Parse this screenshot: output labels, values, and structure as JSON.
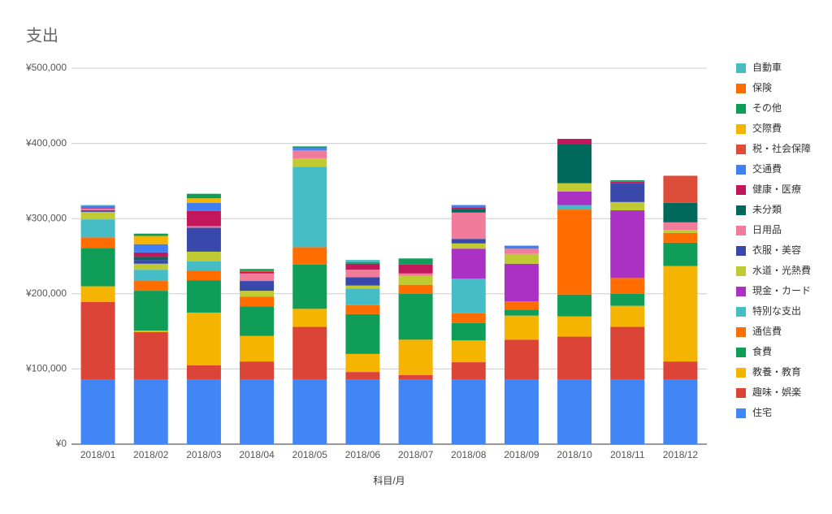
{
  "chart_data": {
    "type": "bar",
    "stacked": true,
    "title": "支出",
    "x_label": "科目/月",
    "categories": [
      "2018/01",
      "2018/02",
      "2018/03",
      "2018/04",
      "2018/05",
      "2018/06",
      "2018/07",
      "2018/08",
      "2018/09",
      "2018/10",
      "2018/11",
      "2018/12"
    ],
    "ylim": [
      0,
      500000
    ],
    "yticks": [
      {
        "value": 0,
        "label": "¥0"
      },
      {
        "value": 100000,
        "label": "¥100,000"
      },
      {
        "value": 200000,
        "label": "¥200,000"
      },
      {
        "value": 300000,
        "label": "¥300,000"
      },
      {
        "value": 400000,
        "label": "¥400,000"
      },
      {
        "value": 500000,
        "label": "¥500,000"
      }
    ],
    "grid": true,
    "legend": "right",
    "series": [
      {
        "name": "住宅",
        "color": "#4285f4",
        "values": [
          86000,
          86000,
          86000,
          86000,
          86000,
          86000,
          86000,
          86000,
          86000,
          86000,
          86000,
          86000
        ]
      },
      {
        "name": "趣味・娯楽",
        "color": "#db4437",
        "values": [
          103000,
          63000,
          19000,
          24000,
          70000,
          10000,
          6000,
          23000,
          53000,
          57000,
          70000,
          24000
        ]
      },
      {
        "name": "教養・教育",
        "color": "#f4b400",
        "values": [
          21000,
          2000,
          70000,
          34000,
          24000,
          24000,
          47000,
          29000,
          32000,
          27000,
          28000,
          127000
        ]
      },
      {
        "name": "食費",
        "color": "#0f9d58",
        "values": [
          51000,
          53000,
          43000,
          39000,
          59000,
          53000,
          61000,
          23000,
          8000,
          29000,
          16000,
          31000
        ]
      },
      {
        "name": "通信費",
        "color": "#ff6d01",
        "values": [
          14000,
          13000,
          13000,
          13000,
          23000,
          12000,
          12000,
          13000,
          11000,
          113000,
          21000,
          13000
        ]
      },
      {
        "name": "特別な支出",
        "color": "#46bdc6",
        "values": [
          24000,
          15000,
          12000,
          0,
          107000,
          22000,
          0,
          46000,
          0,
          6000,
          0,
          0
        ]
      },
      {
        "name": "現金・カード",
        "color": "#ab30c4",
        "values": [
          0,
          0,
          0,
          0,
          0,
          0,
          0,
          40000,
          50000,
          18000,
          90000,
          0
        ]
      },
      {
        "name": "水道・光熱費",
        "color": "#c0ca33",
        "values": [
          10000,
          8000,
          13000,
          8000,
          11000,
          4000,
          12000,
          7000,
          13000,
          11000,
          11000,
          4000
        ]
      },
      {
        "name": "衣服・美容",
        "color": "#3949ab",
        "values": [
          2000,
          5000,
          32000,
          13000,
          0,
          11000,
          0,
          6000,
          0,
          0,
          25000,
          0
        ]
      },
      {
        "name": "日用品",
        "color": "#f07b9b",
        "values": [
          2000,
          0,
          2000,
          10000,
          11000,
          10000,
          3000,
          35000,
          7000,
          0,
          0,
          10000
        ]
      },
      {
        "name": "未分類",
        "color": "#00695c",
        "values": [
          0,
          4000,
          0,
          0,
          0,
          0,
          0,
          5000,
          0,
          52000,
          0,
          26000
        ]
      },
      {
        "name": "健康・医療",
        "color": "#c2185b",
        "values": [
          1000,
          6000,
          20000,
          2000,
          0,
          8000,
          12000,
          2000,
          0,
          7000,
          2000,
          0
        ]
      },
      {
        "name": "交通費",
        "color": "#3f7ff2",
        "values": [
          3000,
          11000,
          11000,
          0,
          3000,
          0,
          0,
          3000,
          4000,
          0,
          0,
          0
        ]
      },
      {
        "name": "税・社会保障",
        "color": "#dd4b39",
        "values": [
          0,
          0,
          0,
          2000,
          0,
          0,
          0,
          0,
          0,
          0,
          0,
          36000
        ]
      },
      {
        "name": "交際費",
        "color": "#f4b400",
        "values": [
          0,
          11000,
          6000,
          0,
          0,
          0,
          0,
          0,
          0,
          0,
          0,
          0
        ]
      },
      {
        "name": "その他",
        "color": "#109d58",
        "values": [
          0,
          3000,
          6000,
          2000,
          2000,
          2000,
          8000,
          0,
          0,
          0,
          2000,
          0
        ]
      },
      {
        "name": "保険",
        "color": "#ff6d01",
        "values": [
          0,
          0,
          0,
          0,
          0,
          0,
          0,
          0,
          0,
          0,
          0,
          0
        ]
      },
      {
        "name": "自動車",
        "color": "#46bdc6",
        "values": [
          1000,
          0,
          0,
          0,
          0,
          3000,
          0,
          0,
          0,
          0,
          0,
          0
        ]
      }
    ]
  }
}
